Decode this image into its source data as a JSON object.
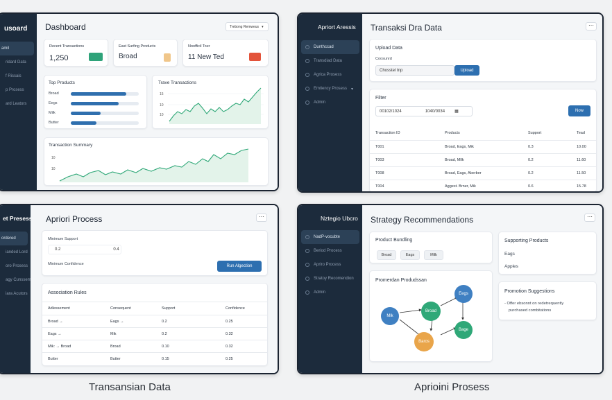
{
  "screens": {
    "dashboard": {
      "brand": "usoard",
      "nav": [
        "amil",
        "ridard Data",
        "f Rissais",
        "p Prosess",
        "ard Leators"
      ],
      "title": "Dashboard",
      "dropdown": "Trebong Remweus",
      "stats": [
        {
          "label": "Recent Transactions",
          "value": "1,250",
          "color": "#2fa37a"
        },
        {
          "label": "East Surfing Products",
          "value": "Broad",
          "color": "#f0c68a"
        },
        {
          "label": "Noofficil Toer",
          "value": "11 New Ted",
          "color": "#e3533a"
        }
      ],
      "top_products": {
        "title": "Top Products",
        "items": [
          {
            "label": "Broad",
            "value": 0.82
          },
          {
            "label": "Eegs",
            "value": 0.7
          },
          {
            "label": "Milk",
            "value": 0.44
          },
          {
            "label": "Butter",
            "value": 0.38
          }
        ]
      },
      "trave_chart": {
        "title": "Trave Transactions",
        "ticks": [
          "15",
          "10",
          "10"
        ]
      },
      "summary_chart": {
        "title": "Transaction Summary",
        "ticks": [
          "10",
          "10"
        ]
      }
    },
    "transaksi": {
      "brand": "Apriort Aressis",
      "nav": [
        "Dunthccad",
        "Transdiad Data",
        "Agrica Prosess",
        "Emtiency Prosess",
        "Admin"
      ],
      "title": "Transaksi Dra Data",
      "upload": {
        "title": "Upload Data",
        "label": "Coosunrd",
        "file_button": "Chosstel tnp",
        "upload_button": "Upload"
      },
      "filter": {
        "title": "Filter",
        "date_from": "00102/1024",
        "date_to": "1040/0034",
        "button": "Now"
      },
      "table": {
        "headers": [
          "Transaction ID",
          "Products",
          "Support",
          "Tead"
        ],
        "rows": [
          [
            "T001",
            "Broad, Eags, Mik",
            "0.3",
            "10.00"
          ],
          [
            "T003",
            "Broad, Mllk",
            "0.2",
            "11.60"
          ],
          [
            "T008",
            "Broad, Eags, Aberber",
            "0.2",
            "11.50"
          ],
          [
            "T004",
            "Aggest. Brner, Mik",
            "0.6",
            "15.78"
          ]
        ]
      }
    },
    "apriori": {
      "brand": "et Presess",
      "nav": [
        "ordered",
        "ianded Lord",
        "oro Prosess",
        "agy Cunssements",
        "iara Acutors"
      ],
      "title": "Apriori Process",
      "min_support_label": "Minimum Support",
      "min_support_values": [
        "0.2",
        "0.4"
      ],
      "min_conf_label": "Minimum Confidence",
      "run_button": "Run Algection",
      "rules": {
        "title": "Association Rules",
        "headers": [
          "Adlessement",
          "Consequent",
          "Support",
          "Confidence"
        ],
        "rows": [
          [
            "Broad →",
            "Eags →",
            "0.2",
            "0.25"
          ],
          [
            "Eags →",
            "Mik",
            "0.2",
            "0.32"
          ],
          [
            "Mik: → Broad",
            "Broad",
            "0.10",
            "0.32"
          ],
          [
            "Butter",
            "Butter",
            "0.15",
            "0.25"
          ]
        ]
      }
    },
    "strategy": {
      "brand": "Nztegio Ubcro",
      "nav": [
        "NadP-vocubte",
        "Beriod Process",
        "Apriro Process",
        "Stratoy Recomendion",
        "Admin"
      ],
      "title": "Strategy Recommendations",
      "bundling": {
        "title": "Product Bundling",
        "chips": [
          "Broad",
          "Eags",
          "Milk"
        ]
      },
      "graph": {
        "title": "Promerdan Produdssan",
        "nodes": [
          "Mlk",
          "Broad",
          "Eegs",
          "Bage",
          "Baros"
        ]
      },
      "supporting": {
        "title": "Supporting Products",
        "items": [
          "Eags",
          "Apples"
        ]
      },
      "promotion": {
        "title": "Promotion Suggestions",
        "text1": "- Offer ebsonnt on redetrequently",
        "text2": "purchased combitations"
      }
    }
  },
  "captions": {
    "left": "Transansian Data",
    "right": "Aprioini  Prosess"
  },
  "colors": {
    "sidebar": "#1c2b3c",
    "accent": "#2d6fb0",
    "node_blue": "#3f80c2",
    "node_green": "#2fa878",
    "node_orange": "#e9a54a"
  }
}
